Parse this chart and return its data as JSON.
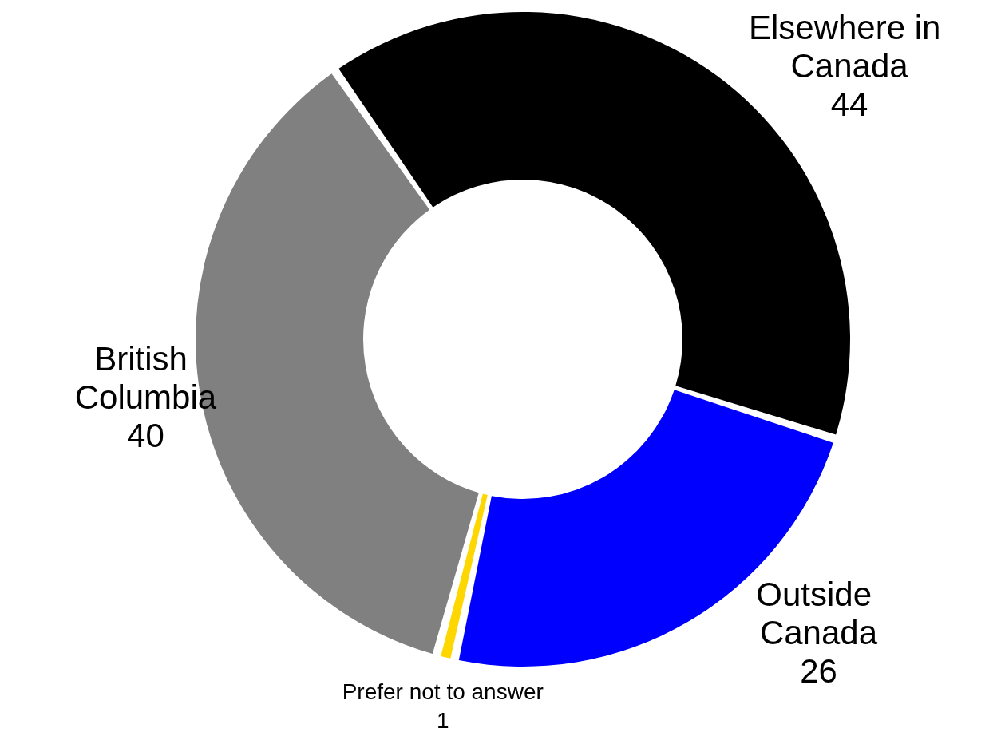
{
  "chart_data": {
    "type": "donut",
    "categories": [
      "Elsewhere in Canada",
      "Outside Canada",
      "Prefer not to answer",
      "British Columbia"
    ],
    "values": [
      44,
      26,
      1,
      40
    ],
    "colors": [
      "#000000",
      "#0000ff",
      "#ffd700",
      "#808080"
    ],
    "data_labels": true,
    "legend": false
  }
}
